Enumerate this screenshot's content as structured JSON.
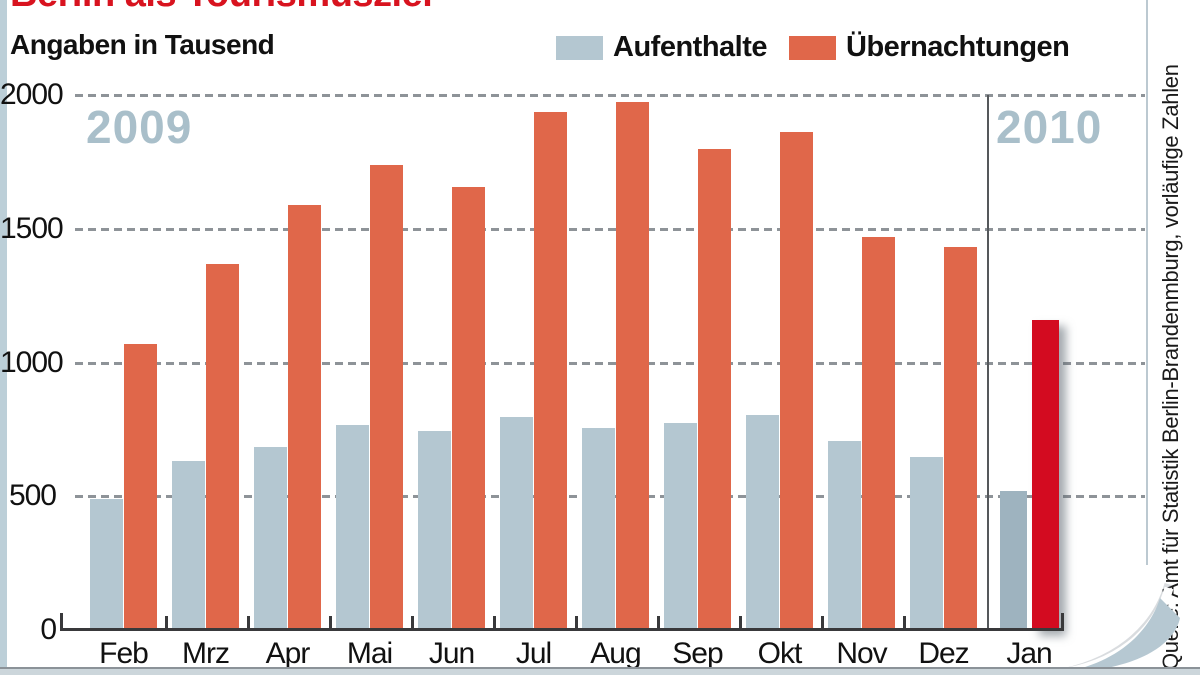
{
  "title": "Berlin als Tourismusziel",
  "subtitle": "Angaben in Tausend",
  "legend": [
    {
      "label": "Aufenthalte",
      "color": "#b4c7d1"
    },
    {
      "label": "Übernachtungen",
      "color": "#e0674a"
    }
  ],
  "year_labels": [
    "2009",
    "2010"
  ],
  "source": "Quelle: Amt für Statistik Berlin-Brandenmburg, vorläufige Zahlen",
  "colors": {
    "aufenthalte": "#b4c7d1",
    "uebernachtungen": "#e0674a",
    "aufenthalte_2010": "#9eb3bf",
    "uebernachtungen_2010": "#d30b20",
    "title_red": "#d8131f",
    "year_label_blue": "#a9bfca"
  },
  "chart_data": {
    "type": "bar",
    "title": "Berlin als Tourismusziel",
    "subtitle": "Angaben in Tausend",
    "categories": [
      "Feb",
      "Mrz",
      "Apr",
      "Mai",
      "Jun",
      "Jul",
      "Aug",
      "Sep",
      "Okt",
      "Nov",
      "Dez",
      "Jan"
    ],
    "category_years": [
      "2009",
      "2009",
      "2009",
      "2009",
      "2009",
      "2009",
      "2009",
      "2009",
      "2009",
      "2009",
      "2009",
      "2010"
    ],
    "series": [
      {
        "name": "Aufenthalte",
        "values": [
          490,
          630,
          685,
          765,
          745,
          795,
          755,
          775,
          805,
          705,
          645,
          520
        ]
      },
      {
        "name": "Übernachtungen",
        "values": [
          1070,
          1370,
          1590,
          1740,
          1655,
          1935,
          1975,
          1800,
          1860,
          1470,
          1430,
          1160
        ]
      }
    ],
    "unit": "Tausend",
    "ylim": [
      0,
      2000
    ],
    "yticks": [
      0,
      500,
      1000,
      1500,
      2000
    ],
    "grid": "dashed-horizontal",
    "legend_position": "top"
  }
}
